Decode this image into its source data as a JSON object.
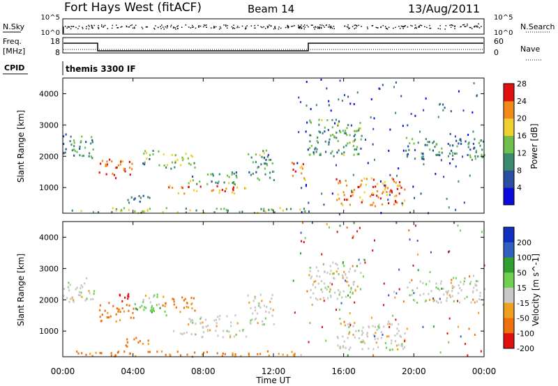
{
  "header": {
    "site": "Fort Hays West (fitACF)",
    "beam": "Beam 14",
    "date": "13/Aug/2011"
  },
  "top_panels": {
    "nsky_label": "N.Sky",
    "nsky_ticks": [
      "10^5",
      "10^0"
    ],
    "nsearch_label": "N.Search",
    "nsearch_ticks": [
      "10^5",
      "10^0"
    ],
    "freq_label": "Freq.",
    "freq_unit": "[MHz]",
    "freq_ticks": [
      "18",
      "8"
    ],
    "nave_label": "Nave",
    "nave_ticks": [
      "60",
      "0"
    ],
    "cpid_label": "CPID",
    "cpid_value": "themis 3300 IF"
  },
  "chart_data": [
    {
      "type": "heatmap",
      "name": "power",
      "ylabel": "Slant Range [km]",
      "xlabel": "",
      "ylim": [
        180,
        4500
      ],
      "yticks": [
        "1000",
        "2000",
        "3000",
        "4000"
      ],
      "colorbar": {
        "label": "Power [dB]",
        "ticks": [
          "4",
          "8",
          "12",
          "16",
          "20",
          "24",
          "28"
        ],
        "colors": [
          "#0a0adc",
          "#2a4ea0",
          "#3c8a6e",
          "#6fc04a",
          "#f0d030",
          "#f08a1a",
          "#e01010"
        ]
      },
      "echo_regions": [
        {
          "t": [
            0.0,
            1.8
          ],
          "r": [
            1900,
            2700
          ],
          "level": 10
        },
        {
          "t": [
            2.0,
            4.0
          ],
          "r": [
            1300,
            1900
          ],
          "level": 24
        },
        {
          "t": [
            4.5,
            5.5
          ],
          "r": [
            1700,
            2200
          ],
          "level": 12
        },
        {
          "t": [
            5.5,
            7.5
          ],
          "r": [
            1600,
            2100
          ],
          "level": 14
        },
        {
          "t": [
            7.0,
            10.0
          ],
          "r": [
            1100,
            1500
          ],
          "level": 12
        },
        {
          "t": [
            6.0,
            10.5
          ],
          "r": [
            800,
            1050
          ],
          "level": 22
        },
        {
          "t": [
            3.5,
            5.0
          ],
          "r": [
            500,
            800
          ],
          "level": 10
        },
        {
          "t": [
            10.5,
            12.0
          ],
          "r": [
            1200,
            2200
          ],
          "level": 12
        },
        {
          "t": [
            13.0,
            13.8
          ],
          "r": [
            1200,
            1800
          ],
          "level": 22
        },
        {
          "t": [
            14.0,
            17.0
          ],
          "r": [
            2000,
            3200
          ],
          "level": 12
        },
        {
          "t": [
            15.5,
            19.5
          ],
          "r": [
            400,
            1300
          ],
          "level": 22
        },
        {
          "t": [
            19.5,
            24.0
          ],
          "r": [
            1900,
            2600
          ],
          "level": 10
        },
        {
          "t": [
            0.5,
            14.0
          ],
          "r": [
            180,
            350
          ],
          "level": 14
        }
      ]
    },
    {
      "type": "heatmap",
      "name": "velocity",
      "ylabel": "Slant Range [km]",
      "xlabel": "Time UT",
      "ylim": [
        180,
        4500
      ],
      "yticks": [
        "1000",
        "2000",
        "3000",
        "4000"
      ],
      "xticks": [
        "00:00",
        "04:00",
        "08:00",
        "12:00",
        "16:00",
        "20:00",
        "00:00"
      ],
      "colorbar": {
        "label": "Velocity [m s^-1]",
        "ticks": [
          "200",
          "100",
          "50",
          "15",
          "-15",
          "-50",
          "-100",
          "-200"
        ],
        "colors": [
          "#1030c0",
          "#3060c0",
          "#30a030",
          "#70d050",
          "#c8c8c8",
          "#f0a020",
          "#f07010",
          "#e01010"
        ]
      },
      "echo_regions": [
        {
          "t": [
            0.0,
            1.8
          ],
          "r": [
            1900,
            2700
          ],
          "v": 0
        },
        {
          "t": [
            2.0,
            4.0
          ],
          "r": [
            1300,
            1900
          ],
          "v": -60
        },
        {
          "t": [
            3.0,
            4.0
          ],
          "r": [
            1900,
            2200
          ],
          "v": -220
        },
        {
          "t": [
            4.5,
            5.5
          ],
          "r": [
            1700,
            2200
          ],
          "v": 0
        },
        {
          "t": [
            5.5,
            7.5
          ],
          "r": [
            1600,
            2100
          ],
          "v": -60
        },
        {
          "t": [
            4.0,
            6.0
          ],
          "r": [
            1500,
            1900
          ],
          "v": 40
        },
        {
          "t": [
            7.0,
            10.0
          ],
          "r": [
            1100,
            1500
          ],
          "v": 0
        },
        {
          "t": [
            6.0,
            10.5
          ],
          "r": [
            800,
            1050
          ],
          "v": 0
        },
        {
          "t": [
            3.5,
            5.0
          ],
          "r": [
            500,
            800
          ],
          "v": -60
        },
        {
          "t": [
            10.5,
            12.0
          ],
          "r": [
            1200,
            2200
          ],
          "v": 0
        },
        {
          "t": [
            14.0,
            17.0
          ],
          "r": [
            2000,
            3200
          ],
          "v": 0
        },
        {
          "t": [
            15.5,
            19.5
          ],
          "r": [
            400,
            1300
          ],
          "v": 0
        },
        {
          "t": [
            19.5,
            24.0
          ],
          "r": [
            1900,
            2600
          ],
          "v": 0
        },
        {
          "t": [
            0.5,
            14.0
          ],
          "r": [
            180,
            350
          ],
          "v": -60
        }
      ]
    }
  ]
}
